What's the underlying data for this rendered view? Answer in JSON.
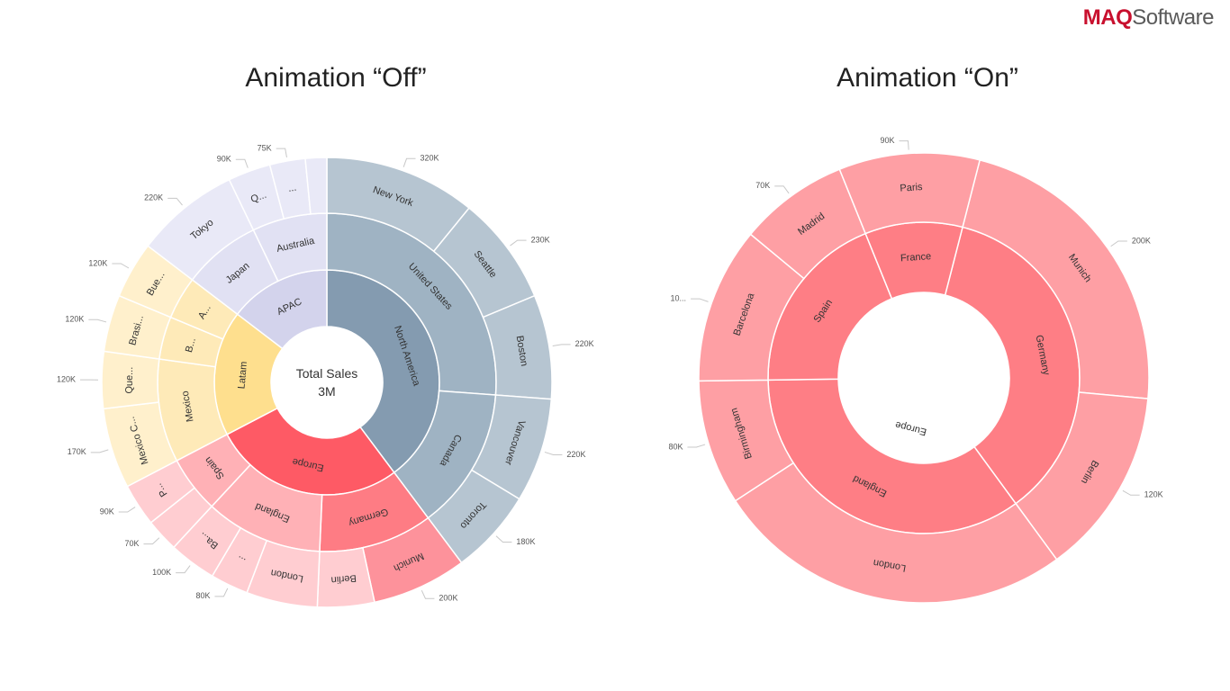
{
  "brand": {
    "maq": "MAQ",
    "software": "Software"
  },
  "colors": {
    "north_america": [
      "#849bb0",
      "#9fb3c3",
      "#b6c5d1"
    ],
    "apac": [
      "#d3d3ec",
      "#e1e1f3",
      "#e9e9f7"
    ],
    "latam": [
      "#fedf8e",
      "#feeab8",
      "#fff0cc"
    ],
    "europe": [
      "#fe5a65",
      "#ffb1b6",
      "#ffcdd1"
    ],
    "europe_highlight": [
      "#fe5a65",
      "#fe7c84",
      "#fd929b"
    ],
    "on_chart": [
      "#fe5a65",
      "#fe7e85",
      "#fe9fa4"
    ]
  },
  "chart_data": [
    {
      "type": "sunburst",
      "title": "Animation “Off”",
      "center_label": "Total Sales",
      "center_value": "3M",
      "groups": [
        {
          "name": "North America",
          "color": "north_america",
          "children": [
            {
              "name": "United States",
              "children": [
                {
                  "name": "New York",
                  "value": 320000,
                  "label": "320K"
                },
                {
                  "name": "Seattle",
                  "value": 230000,
                  "label": "230K"
                },
                {
                  "name": "Boston",
                  "value": 220000,
                  "label": "220K"
                }
              ]
            },
            {
              "name": "Canada",
              "children": [
                {
                  "name": "Vancouver",
                  "value": 220000,
                  "label": "220K"
                },
                {
                  "name": "Toronto",
                  "value": 180000,
                  "label": "180K"
                }
              ]
            }
          ]
        },
        {
          "name": "Europe",
          "color": "europe",
          "children": [
            {
              "name": "Germany",
              "highlight": true,
              "children": [
                {
                  "name": "Munich",
                  "value": 200000,
                  "label": "200K",
                  "highlight": true
                },
                {
                  "name": "Berlin",
                  "value": 120000,
                  "label": ""
                }
              ]
            },
            {
              "name": "England",
              "children": [
                {
                  "name": "London",
                  "value": 150000,
                  "label": ""
                },
                {
                  "name": "...",
                  "value": 80000,
                  "label": "80K"
                },
                {
                  "name": "Ba...",
                  "value": 100000,
                  "label": "100K"
                }
              ]
            },
            {
              "name": "Spain",
              "children": [
                {
                  "name": "",
                  "value": 70000,
                  "label": "70K"
                },
                {
                  "name": "P...",
                  "value": 90000,
                  "label": "90K"
                }
              ]
            }
          ]
        },
        {
          "name": "Latam",
          "color": "latam",
          "children": [
            {
              "name": "Mexico",
              "children": [
                {
                  "name": "Mexico C...",
                  "value": 170000,
                  "label": "170K"
                },
                {
                  "name": "Que...",
                  "value": 120000,
                  "label": "120K"
                }
              ]
            },
            {
              "name": "B...",
              "children": [
                {
                  "name": "Brasi...",
                  "value": 120000,
                  "label": "120K"
                }
              ]
            },
            {
              "name": "A...",
              "children": [
                {
                  "name": "Bue...",
                  "value": 120000,
                  "label": "120K"
                }
              ]
            }
          ]
        },
        {
          "name": "APAC",
          "color": "apac",
          "children": [
            {
              "name": "Japan",
              "children": [
                {
                  "name": "Tokyo",
                  "value": 220000,
                  "label": "220K"
                }
              ]
            },
            {
              "name": "Australia",
              "children": [
                {
                  "name": "Q...",
                  "value": 90000,
                  "label": "90K"
                },
                {
                  "name": "...",
                  "value": 75000,
                  "label": "75K"
                },
                {
                  "name": "",
                  "value": 45000,
                  "label": ""
                }
              ]
            }
          ]
        }
      ]
    },
    {
      "type": "sunburst",
      "title": "Animation “On”",
      "groups": [
        {
          "name": "Europe",
          "color": "on_chart",
          "children": [
            {
              "name": "Germany",
              "children": [
                {
                  "name": "Munich",
                  "value": 200000,
                  "label": "200K"
                },
                {
                  "name": "Berlin",
                  "value": 120000,
                  "label": "120K"
                }
              ]
            },
            {
              "name": "England",
              "children": [
                {
                  "name": "London",
                  "value": 230000,
                  "label": ""
                },
                {
                  "name": "Birmingham",
                  "value": 80000,
                  "label": "80K"
                }
              ]
            },
            {
              "name": "Spain",
              "children": [
                {
                  "name": "Barcelona",
                  "value": 100000,
                  "label": "10..."
                },
                {
                  "name": "Madrid",
                  "value": 70000,
                  "label": "70K"
                }
              ]
            },
            {
              "name": "France",
              "children": [
                {
                  "name": "Paris",
                  "value": 90000,
                  "label": "90K"
                }
              ]
            }
          ]
        }
      ]
    }
  ]
}
